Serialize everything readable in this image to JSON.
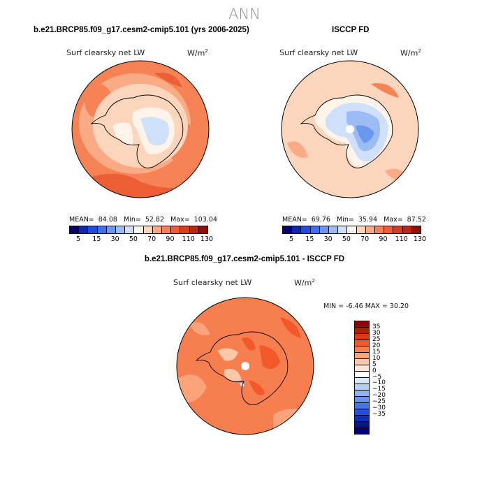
{
  "figure": {
    "title": "ANN"
  },
  "panels": [
    {
      "title": "b.e21.BRCP85.f09_g17.cesm2-cmip5.101 (yrs 2006-2025)",
      "variable": "Surf clearsky net LW",
      "units_base": "W/m",
      "units_exp": "2",
      "stats": {
        "mean_label": "MEAN=",
        "mean": "84.08",
        "min_label": "Min=",
        "min": "52.82",
        "max_label": "Max=",
        "max": "103.04"
      }
    },
    {
      "title": "ISCCP FD",
      "variable": "Surf clearsky net LW",
      "units_base": "W/m",
      "units_exp": "2",
      "stats": {
        "mean_label": "MEAN=",
        "mean": "69.76",
        "min_label": "Min=",
        "min": "35.94",
        "max_label": "Max=",
        "max": "87.52"
      }
    },
    {
      "title": "b.e21.BRCP85.f09_g17.cesm2-cmip5.101 - ISCCP FD",
      "variable": "Surf clearsky net LW",
      "units_base": "W/m",
      "units_exp": "2",
      "stats_text": "MIN =   -6.46  MAX =   30.20"
    }
  ],
  "colorbar_abs": {
    "colors": [
      "#08006e",
      "#0a2aa8",
      "#1f4fd2",
      "#3e73e6",
      "#6b98ef",
      "#9cbcf5",
      "#cfe0fb",
      "#fff4ea",
      "#fcd5bd",
      "#f9ab85",
      "#f58356",
      "#ec5e33",
      "#d7401c",
      "#b82a10",
      "#8c1407"
    ],
    "tick_labels": [
      "5",
      "15",
      "30",
      "50",
      "70",
      "90",
      "110",
      "130"
    ]
  },
  "colorbar_diff": {
    "colors": [
      "#8c0a00",
      "#b81c00",
      "#e03a0a",
      "#f2582a",
      "#f77e4f",
      "#fba47c",
      "#fdc8a8",
      "#ffe7d6",
      "#ffffff",
      "#dbe8fb",
      "#b6cff7",
      "#8fb2f2",
      "#6b94ec",
      "#4575e6",
      "#1f52d6",
      "#0a30b4",
      "#06168a",
      "#020070"
    ],
    "tick_labels": [
      "35",
      "30",
      "25",
      "20",
      "15",
      "10",
      "5",
      "0",
      "−5",
      "−10",
      "−15",
      "−20",
      "−25",
      "−30",
      "−35"
    ]
  }
}
